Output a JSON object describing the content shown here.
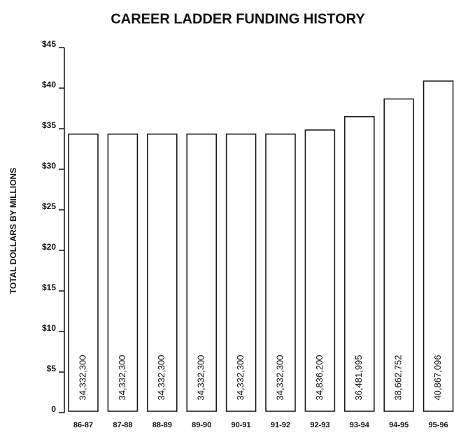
{
  "chart_data": {
    "type": "bar",
    "title": "CAREER LADDER FUNDING HISTORY",
    "y_label": "TOTAL DOLLARS BY MILLIONS",
    "categories": [
      "86-87",
      "87-88",
      "88-89",
      "89-90",
      "90-91",
      "91-92",
      "92-93",
      "93-94",
      "94-95",
      "95-96"
    ],
    "values": [
      34.3323,
      34.3323,
      34.3323,
      34.3323,
      34.3323,
      34.3323,
      34.8362,
      36.481995,
      38.662752,
      40.867096
    ],
    "value_labels": [
      "34,332,300",
      "34,332,300",
      "34,332,300",
      "34,332,300",
      "34,332,300",
      "34,332,300",
      "34,836,200",
      "36,481,995",
      "38,662,752",
      "40,867,096"
    ],
    "color": "#ffffff",
    "ylim": [
      0,
      45
    ],
    "yticks": [
      0,
      {
        "value": 5,
        "label": "$5"
      },
      {
        "value": 10,
        "label": "$10"
      },
      {
        "value": 15,
        "label": "$15"
      },
      {
        "value": 20,
        "label": "$20"
      },
      {
        "value": 25,
        "label": "$25"
      },
      {
        "value": 30,
        "label": "$30"
      },
      {
        "value": 35,
        "label": "$35"
      },
      {
        "value": 40,
        "label": "$40"
      },
      {
        "value": 45,
        "label": "$45"
      }
    ],
    "grid": false
  }
}
